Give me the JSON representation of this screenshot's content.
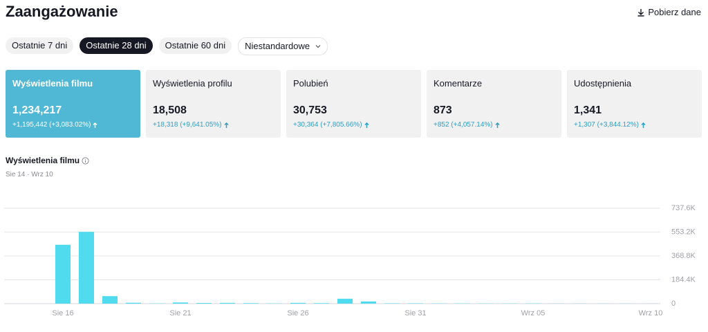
{
  "header": {
    "title": "Zaangażowanie",
    "download": "Pobierz dane"
  },
  "tabs": [
    "Ostatnie 7 dni",
    "Ostatnie 28 dni",
    "Ostatnie 60 dni",
    "Niestandardowe"
  ],
  "cards": [
    {
      "label": "Wyświetlenia filmu",
      "value": "1,234,217",
      "change": "+1,195,442 (+3,083.02%)"
    },
    {
      "label": "Wyświetlenia profilu",
      "value": "18,508",
      "change": "+18,318 (+9,641.05%)"
    },
    {
      "label": "Polubień",
      "value": "30,753",
      "change": "+30,364 (+7,805.66%)"
    },
    {
      "label": "Komentarze",
      "value": "873",
      "change": "+852 (+4,057.14%)"
    },
    {
      "label": "Udostępnienia",
      "value": "1,341",
      "change": "+1,307 (+3,844.12%)"
    }
  ],
  "chart_data": {
    "type": "bar",
    "title": "Wyświetlenia filmu",
    "subtitle": "Sie 14 · Wrz 10",
    "categories": [
      null,
      null,
      "Sie 16",
      null,
      null,
      null,
      null,
      "Sie 21",
      null,
      null,
      null,
      null,
      "Sie 26",
      null,
      null,
      null,
      null,
      "Sie 31",
      null,
      null,
      null,
      null,
      "Wrz 05",
      null,
      null,
      null,
      null,
      "Wrz 10"
    ],
    "values": [
      0,
      0,
      455000,
      555000,
      58000,
      7000,
      2000,
      9000,
      5000,
      6000,
      4000,
      2000,
      6000,
      4000,
      38000,
      17000,
      3000,
      3000,
      2000,
      2000,
      1500,
      1500,
      2000,
      800,
      800,
      500,
      500,
      500
    ],
    "color": "#50dcee",
    "ylim": [
      0,
      737600
    ],
    "yticks": [
      0,
      {
        "value": 184400,
        "label": "184.4K"
      },
      {
        "value": 368800,
        "label": "368.8K"
      },
      {
        "value": 553200,
        "label": "553.2K"
      },
      {
        "value": 737600,
        "label": "737.6K"
      }
    ],
    "grid": true
  }
}
